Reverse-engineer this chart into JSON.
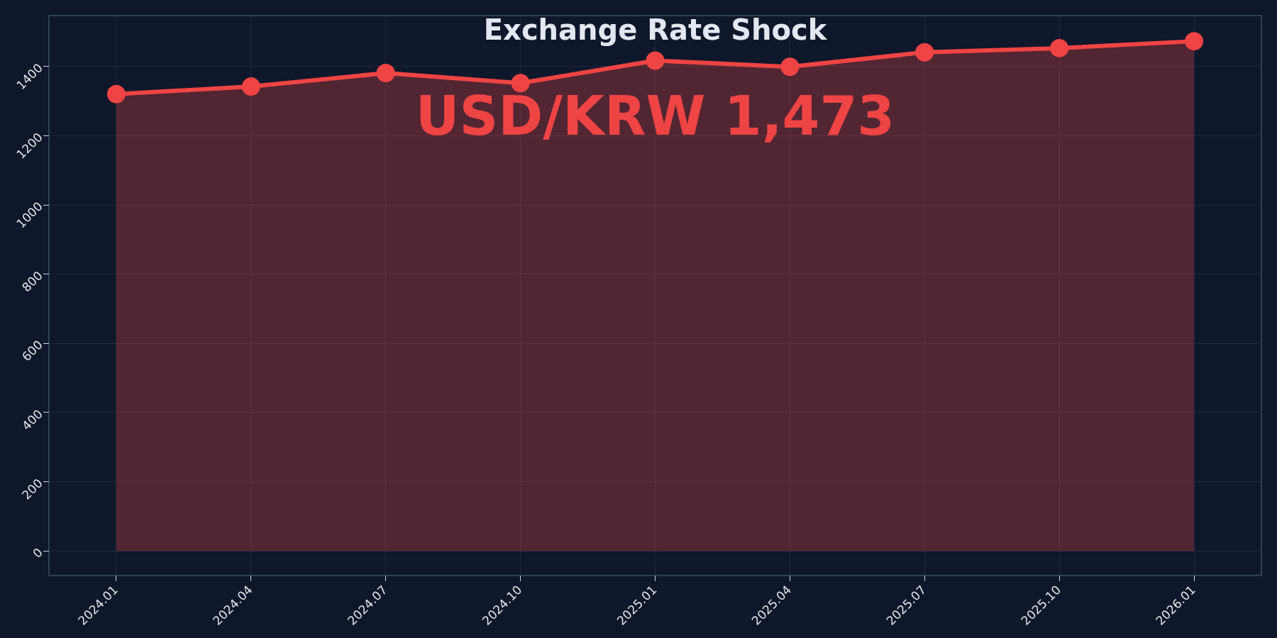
{
  "chart_data": {
    "type": "area",
    "title": "Exchange Rate Shock",
    "annotations": [
      "USD/KRW 1,473"
    ],
    "categories": [
      "2024.01",
      "2024.04",
      "2024.07",
      "2024.10",
      "2025.01",
      "2025.04",
      "2025.07",
      "2025.10",
      "2026.01"
    ],
    "series": [
      {
        "color": "#ef4444",
        "values": [
          1320,
          1342,
          1381,
          1352,
          1417,
          1399,
          1441,
          1453,
          1473
        ]
      }
    ],
    "ylim": [
      -71,
      1547
    ],
    "yticks": [
      0,
      200,
      400,
      600,
      800,
      1000,
      1200,
      1400
    ],
    "grid": true,
    "marker": "circle",
    "line_style": "solid"
  }
}
